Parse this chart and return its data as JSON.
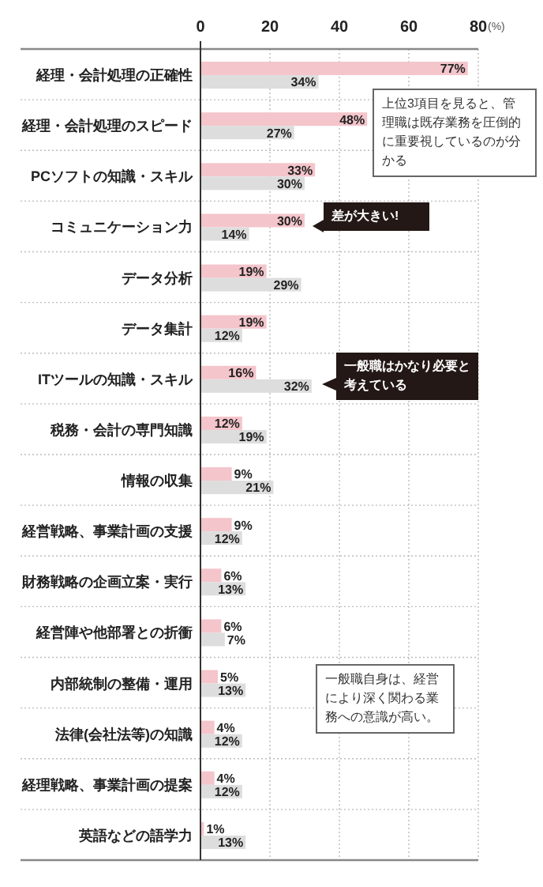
{
  "chart_data": {
    "type": "bar",
    "orientation": "horizontal",
    "categories": [
      "経理・会計処理の正確性",
      "経理・会計処理のスピード",
      "PCソフトの知識・スキル",
      "コミュニケーション力",
      "データ分析",
      "データ集計",
      "ITツールの知識・スキル",
      "税務・会計の専門知識",
      "情報の収集",
      "経営戦略、事業計画の支援",
      "財務戦略の企画立案・実行",
      "経営陣や他部署との折衝",
      "内部統制の整備・運用",
      "法律(会社法等)の知識",
      "経理戦略、事業計画の提案",
      "英語などの語学力"
    ],
    "series": [
      {
        "color": "#f4c5cb",
        "values": [
          77,
          48,
          33,
          30,
          19,
          19,
          16,
          12,
          9,
          9,
          6,
          6,
          5,
          4,
          4,
          1
        ],
        "value_labels": [
          "77%",
          "48%",
          "33%",
          "30%",
          "19%",
          "19%",
          "16%",
          "12%",
          "9%",
          "9%",
          "6%",
          "6%",
          "5%",
          "4%",
          "4%",
          "1%"
        ]
      },
      {
        "color": "#dddddd",
        "values": [
          34,
          27,
          30,
          14,
          29,
          12,
          32,
          19,
          21,
          12,
          13,
          7,
          13,
          12,
          12,
          13
        ],
        "value_labels": [
          "34%",
          "27%",
          "30%",
          "14%",
          "29%",
          "12%",
          "32%",
          "19%",
          "21%",
          "12%",
          "13%",
          "7%",
          "13%",
          "12%",
          "12%",
          "13%"
        ]
      }
    ],
    "xlim": [
      0,
      80
    ],
    "xticks": [
      0,
      20,
      40,
      60,
      80
    ],
    "xlabel": "(%)",
    "grid": "x",
    "annotations": [
      "上位3項目を見ると、管理職は既存業務を圧倒的に重要視しているのが分かる",
      "差が大きい!",
      "一般職はかなり必要と考えている",
      "一般職自身は、経営により深く関わる業務への意識が高い。"
    ]
  }
}
